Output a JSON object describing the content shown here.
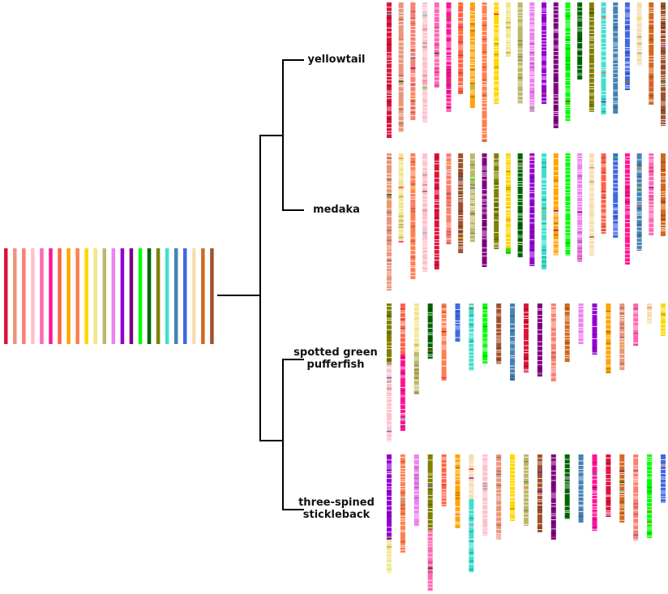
{
  "palette": {
    "cr": "#DC143C",
    "ds": "#E9967A",
    "sa": "#FA8072",
    "pk": "#FFC0CB",
    "hp": "#FF69B4",
    "dp": "#FF1493",
    "to": "#FF6347",
    "or": "#FFA500",
    "co": "#FF7F50",
    "go": "#FFD700",
    "kh": "#F0E68C",
    "dk": "#BDB76B",
    "vi": "#EE82EE",
    "dv": "#9400D3",
    "pu": "#800080",
    "li": "#00FF00",
    "dg": "#006400",
    "ol": "#808000",
    "tu": "#40E0D0",
    "sb": "#4682B4",
    "rb": "#4169E1",
    "wh": "#F5DEB3",
    "ch": "#D2691E",
    "si": "#A0522D"
  },
  "ancestral": [
    "cr",
    "ds",
    "sa",
    "pk",
    "hp",
    "dp",
    "to",
    "or",
    "co",
    "go",
    "kh",
    "dk",
    "vi",
    "dv",
    "pu",
    "li",
    "dg",
    "ol",
    "tu",
    "sb",
    "rb",
    "wh",
    "ch",
    "si"
  ],
  "species": [
    {
      "label": "yellowtail",
      "chromosomes": [
        [
          [
            "cr",
            167
          ]
        ],
        [
          [
            "ds",
            160
          ]
        ],
        [
          [
            "sa",
            145
          ]
        ],
        [
          [
            "pk",
            148
          ]
        ],
        [
          [
            "hp",
            105
          ]
        ],
        [
          [
            "dp",
            135
          ]
        ],
        [
          [
            "to",
            113
          ]
        ],
        [
          [
            "or",
            130
          ]
        ],
        [
          [
            "co",
            172
          ]
        ],
        [
          [
            "go",
            125
          ]
        ],
        [
          [
            "kh",
            67
          ]
        ],
        [
          [
            "dk",
            125
          ]
        ],
        [
          [
            "vi",
            135
          ]
        ],
        [
          [
            "dv",
            125
          ]
        ],
        [
          [
            "pu",
            155
          ]
        ],
        [
          [
            "li",
            146
          ]
        ],
        [
          [
            "dg",
            95
          ]
        ],
        [
          [
            "ol",
            135
          ]
        ],
        [
          [
            "tu",
            138
          ]
        ],
        [
          [
            "sb",
            137
          ]
        ],
        [
          [
            "rb",
            108
          ]
        ],
        [
          [
            "wh",
            78
          ]
        ],
        [
          [
            "ch",
            126
          ]
        ],
        [
          [
            "si",
            152
          ]
        ]
      ]
    },
    {
      "label": "medaka",
      "chromosomes": [
        [
          [
            "ds",
            169
          ]
        ],
        [
          [
            "kh",
            110
          ]
        ],
        [
          [
            "co",
            155
          ]
        ],
        [
          [
            "pk",
            146
          ]
        ],
        [
          [
            "cr",
            143
          ]
        ],
        [
          [
            "sa",
            112
          ]
        ],
        [
          [
            "si",
            123
          ]
        ],
        [
          [
            "dk",
            109
          ]
        ],
        [
          [
            "pu",
            140
          ]
        ],
        [
          [
            "ol",
            118
          ]
        ],
        [
          [
            "go",
            118
          ],
          [
            "li",
            6
          ]
        ],
        [
          [
            "dg",
            128
          ]
        ],
        [
          [
            "dv",
            139
          ]
        ],
        [
          [
            "tu",
            143
          ]
        ],
        [
          [
            "or",
            126
          ]
        ],
        [
          [
            "li",
            126
          ]
        ],
        [
          [
            "vi",
            134
          ]
        ],
        [
          [
            "wh",
            126
          ]
        ],
        [
          [
            "to",
            99
          ]
        ],
        [
          [
            "rb",
            104
          ]
        ],
        [
          [
            "dp",
            137
          ]
        ],
        [
          [
            "sb",
            120
          ]
        ],
        [
          [
            "hp",
            101
          ]
        ],
        [
          [
            "ch",
            102
          ]
        ]
      ]
    },
    {
      "label": "spotted green pufferfish",
      "chromosomes": [
        [
          [
            "ol",
            75
          ],
          [
            "pk",
            95
          ]
        ],
        [
          [
            "to",
            63
          ],
          [
            "dp",
            94
          ]
        ],
        [
          [
            "kh",
            60
          ],
          [
            "dk",
            52
          ]
        ],
        [
          [
            "dg",
            68
          ]
        ],
        [
          [
            "co",
            95
          ]
        ],
        [
          [
            "rb",
            47
          ]
        ],
        [
          [
            "tu",
            83
          ]
        ],
        [
          [
            "li",
            74
          ]
        ],
        [
          [
            "si",
            75
          ]
        ],
        [
          [
            "sb",
            95
          ]
        ],
        [
          [
            "cr",
            85
          ]
        ],
        [
          [
            "pu",
            90
          ]
        ],
        [
          [
            "sa",
            96
          ]
        ],
        [
          [
            "ch",
            72
          ]
        ],
        [
          [
            "vi",
            50
          ]
        ],
        [
          [
            "dv",
            63
          ]
        ],
        [
          [
            "or",
            86
          ]
        ],
        [
          [
            "ds",
            82
          ]
        ],
        [
          [
            "hp",
            52
          ]
        ],
        [
          [
            "wh",
            25
          ]
        ],
        [
          [
            "go",
            40
          ]
        ]
      ]
    },
    {
      "label": "three-spined stickleback",
      "chromosomes": [
        [
          [
            "dv",
            105
          ],
          [
            "kh",
            41
          ]
        ],
        [
          [
            "co",
            121
          ]
        ],
        [
          [
            "vi",
            88
          ]
        ],
        [
          [
            "ol",
            93
          ],
          [
            "hp",
            75
          ]
        ],
        [
          [
            "to",
            64
          ]
        ],
        [
          [
            "or",
            91
          ]
        ],
        [
          [
            "wh",
            55
          ],
          [
            "tu",
            90
          ]
        ],
        [
          [
            "pk",
            100
          ]
        ],
        [
          [
            "ds",
            105
          ]
        ],
        [
          [
            "go",
            82
          ]
        ],
        [
          [
            "dk",
            88
          ]
        ],
        [
          [
            "si",
            96
          ]
        ],
        [
          [
            "pu",
            105
          ]
        ],
        [
          [
            "dg",
            80
          ]
        ],
        [
          [
            "sb",
            84
          ]
        ],
        [
          [
            "dp",
            95
          ]
        ],
        [
          [
            "cr",
            77
          ]
        ],
        [
          [
            "ch",
            84
          ]
        ],
        [
          [
            "sa",
            106
          ]
        ],
        [
          [
            "li",
            103
          ]
        ],
        [
          [
            "rb",
            60
          ]
        ]
      ]
    }
  ]
}
